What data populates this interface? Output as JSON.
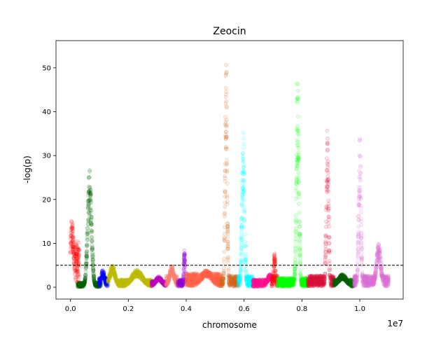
{
  "chart_data": {
    "type": "scatter",
    "title": "Zeocin",
    "xlabel": "chromosome",
    "ylabel": "-log(p)",
    "x_offset_label": "1e7",
    "xlim": [
      -500000,
      11500000
    ],
    "ylim": [
      -2.7,
      56.2
    ],
    "x_ticks": [
      0,
      2000000,
      4000000,
      6000000,
      8000000,
      10000000
    ],
    "x_tick_labels": [
      "0.0",
      "0.2",
      "0.4",
      "0.6",
      "0.8",
      "1.0"
    ],
    "y_ticks": [
      0,
      10,
      20,
      30,
      40,
      50
    ],
    "y_tick_labels": [
      "0",
      "10",
      "20",
      "30",
      "40",
      "50"
    ],
    "threshold": 5,
    "grid": false,
    "legend": "none",
    "series": [
      {
        "color": "#ff0000",
        "x_range": [
          0,
          300000
        ],
        "baseline": 6,
        "peaks": [
          {
            "x": 50000,
            "y": 15.5,
            "width": 60000
          }
        ]
      },
      {
        "color": "#006400",
        "x_range": [
          250000,
          1050000
        ],
        "baseline": 0.6,
        "peaks": [
          {
            "x": 660000,
            "y": 27,
            "width": 70000
          }
        ]
      },
      {
        "color": "#0000ff",
        "x_range": [
          980000,
          1300000
        ],
        "baseline": 1.2,
        "peaks": [
          {
            "x": 1120000,
            "y": 4,
            "width": 60000
          }
        ]
      },
      {
        "color": "#bfbf00",
        "x_range": [
          1300000,
          2800000
        ],
        "baseline": 1.0,
        "peaks": [
          {
            "x": 1450000,
            "y": 5,
            "width": 100000
          },
          {
            "x": 2300000,
            "y": 4,
            "width": 200000
          }
        ]
      },
      {
        "color": "#bf00bf",
        "x_range": [
          2800000,
          3300000
        ],
        "baseline": 0.8,
        "peaks": [
          {
            "x": 3050000,
            "y": 2.5,
            "width": 120000
          }
        ]
      },
      {
        "color": "#fa8072",
        "x_range": [
          3300000,
          3700000
        ],
        "baseline": 1.5,
        "peaks": [
          {
            "x": 3500000,
            "y": 5,
            "width": 80000
          }
        ]
      },
      {
        "color": "#9400d3",
        "x_range": [
          3700000,
          4000000
        ],
        "baseline": 1.0,
        "peaks": [
          {
            "x": 3940000,
            "y": 8.5,
            "width": 25000
          }
        ]
      },
      {
        "color": "#ff6347",
        "x_range": [
          4000000,
          5200000
        ],
        "baseline": 1.8,
        "peaks": [
          {
            "x": 4700000,
            "y": 4,
            "width": 200000
          }
        ]
      },
      {
        "color": "#d2691e",
        "x_range": [
          5200000,
          5800000
        ],
        "baseline": 1.5,
        "peaks": [
          {
            "x": 5380000,
            "y": 53.5,
            "width": 35000
          }
        ]
      },
      {
        "color": "#00ffff",
        "x_range": [
          5800000,
          6300000
        ],
        "baseline": 1.5,
        "peaks": [
          {
            "x": 5970000,
            "y": 36,
            "width": 45000
          }
        ]
      },
      {
        "color": "#ff1493",
        "x_range": [
          6300000,
          7000000
        ],
        "baseline": 1.0,
        "peaks": [
          {
            "x": 6900000,
            "y": 3,
            "width": 100000
          }
        ]
      },
      {
        "color": "#ff0000",
        "x_range": [
          6950000,
          7150000
        ],
        "baseline": 1.5,
        "peaks": [
          {
            "x": 7050000,
            "y": 8,
            "width": 30000
          }
        ]
      },
      {
        "color": "#00ff00",
        "x_range": [
          7150000,
          8200000
        ],
        "baseline": 1.2,
        "peaks": [
          {
            "x": 7850000,
            "y": 47,
            "width": 45000
          }
        ]
      },
      {
        "color": "#dc143c",
        "x_range": [
          8200000,
          9100000
        ],
        "baseline": 1.5,
        "peaks": [
          {
            "x": 8880000,
            "y": 36.5,
            "width": 40000
          }
        ]
      },
      {
        "color": "#006400",
        "x_range": [
          9100000,
          9800000
        ],
        "baseline": 1.0,
        "peaks": [
          {
            "x": 9400000,
            "y": 3,
            "width": 150000
          }
        ]
      },
      {
        "color": "#da70d6",
        "x_range": [
          9800000,
          11000000
        ],
        "baseline": 1.5,
        "peaks": [
          {
            "x": 10000000,
            "y": 35,
            "width": 40000
          },
          {
            "x": 10650000,
            "y": 10,
            "width": 80000
          }
        ]
      }
    ]
  }
}
